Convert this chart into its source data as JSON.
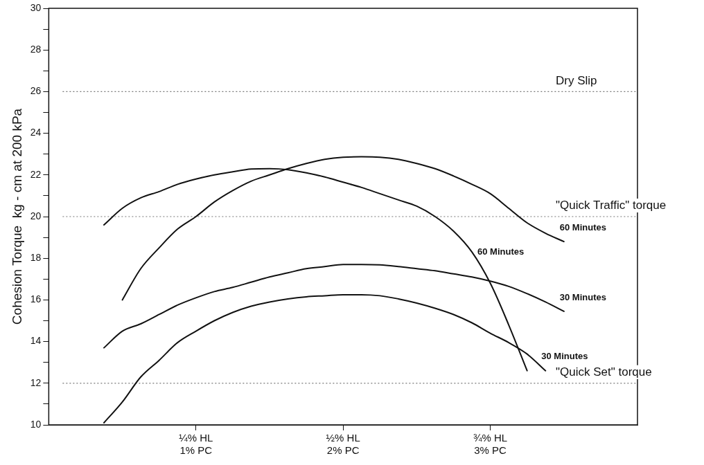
{
  "chart_data": {
    "type": "line",
    "ylabel": "Cohesion Torque  kg - cm at 200 kPa",
    "categories": [
      null,
      null,
      null,
      null,
      null,
      null,
      null,
      null,
      "¼% HL\n1% PC",
      null,
      null,
      null,
      null,
      null,
      null,
      null,
      "½% HL\n2% PC",
      null,
      null,
      null,
      null,
      null,
      null,
      null,
      "¾% HL\n3% PC",
      null,
      null,
      null,
      null,
      null,
      null,
      null,
      null
    ],
    "ylim": [
      10,
      30
    ],
    "yticks": [
      10,
      {
        "value": 11,
        "label": null
      },
      12,
      {
        "value": 13,
        "label": null
      },
      14,
      {
        "value": 15,
        "label": null
      },
      16,
      {
        "value": 17,
        "label": null
      },
      18,
      {
        "value": 19,
        "label": null
      },
      20,
      {
        "value": 21,
        "label": null
      },
      22,
      {
        "value": 23,
        "label": null
      },
      24,
      {
        "value": 25,
        "label": null
      },
      26,
      {
        "value": 27,
        "label": null
      },
      28,
      {
        "value": 29,
        "label": null
      },
      30
    ],
    "grid": false,
    "legend": false,
    "marker": "none",
    "line_style": "solid",
    "series": [
      {
        "name": "60 Minutes",
        "color": "#111111",
        "values": [
          null,
          null,
          null,
          19.6,
          20.4,
          20.9,
          21.2,
          21.55,
          21.8,
          22.0,
          22.15,
          22.28,
          22.3,
          22.25,
          22.1,
          21.9,
          21.65,
          21.4,
          21.1,
          20.8,
          20.5,
          20.0,
          19.3,
          18.3,
          16.8,
          14.8,
          12.6,
          null,
          null,
          null,
          null,
          null,
          null
        ]
      },
      {
        "name": "60 Minutes",
        "color": "#111111",
        "values": [
          null,
          null,
          null,
          null,
          16.0,
          17.5,
          18.5,
          19.4,
          20.0,
          20.7,
          21.25,
          21.7,
          22.0,
          22.3,
          22.55,
          22.75,
          22.85,
          22.87,
          22.85,
          22.75,
          22.55,
          22.3,
          21.95,
          21.55,
          21.1,
          20.4,
          19.7,
          19.2,
          18.8,
          null,
          null,
          null,
          null
        ]
      },
      {
        "name": "30 Minutes",
        "color": "#111111",
        "values": [
          null,
          null,
          null,
          13.7,
          14.5,
          14.85,
          15.3,
          15.75,
          16.1,
          16.4,
          16.6,
          16.85,
          17.1,
          17.3,
          17.5,
          17.6,
          17.7,
          17.7,
          17.68,
          17.6,
          17.5,
          17.4,
          17.25,
          17.1,
          16.9,
          16.65,
          16.3,
          15.9,
          15.45,
          null,
          null,
          null,
          null
        ]
      },
      {
        "name": "30 Minutes",
        "color": "#111111",
        "values": [
          null,
          null,
          null,
          10.1,
          11.1,
          12.3,
          13.1,
          13.95,
          14.5,
          15.0,
          15.4,
          15.7,
          15.9,
          16.05,
          16.15,
          16.2,
          16.25,
          16.25,
          16.2,
          16.05,
          15.85,
          15.6,
          15.3,
          14.9,
          14.4,
          13.95,
          13.4,
          12.6,
          null,
          null,
          null,
          null,
          null
        ]
      }
    ],
    "ref_lines": [
      {
        "axis": "y",
        "value": 26,
        "label": "Dry Slip",
        "color": "#777777",
        "line_style": "dotted"
      },
      {
        "axis": "y",
        "value": 20,
        "label": "\"Quick Traffic\" torque",
        "color": "#777777",
        "line_style": "dotted"
      },
      {
        "axis": "y",
        "value": 12,
        "label": "\"Quick Set\" torque",
        "color": "#777777",
        "line_style": "dotted"
      }
    ]
  }
}
